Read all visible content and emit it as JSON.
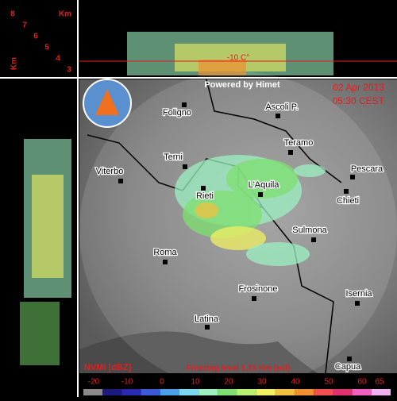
{
  "profile": {
    "unit": "Km",
    "heights": [
      "8",
      "7",
      "6",
      "5",
      "4",
      "3"
    ],
    "side_unit": "Km",
    "isotherm": "-10 C°"
  },
  "map": {
    "credit": "Powered by Himet",
    "date": "02 Apr 2013",
    "time": "05:30 CEST",
    "cities": [
      "Foligno",
      "Ascoli P.",
      "Teramo",
      "Terni",
      "Pescara",
      "Viterbo",
      "L'Aquila",
      "Rieti",
      "Chieti",
      "Sulmona",
      "Roma",
      "Frosinone",
      "Isernia",
      "Latina",
      "Capua"
    ]
  },
  "legend": {
    "product": "NVMI [dBZ]",
    "freezing": "Freezing level  1.73 Km (asl)",
    "ticks": [
      -20,
      -10,
      0,
      10,
      20,
      30,
      40,
      50,
      60,
      65
    ],
    "colors": [
      "#8a8a8a",
      "#1a1a80",
      "#2a2ab0",
      "#3a5ad8",
      "#4aa0e8",
      "#7ad8f0",
      "#9cf0c0",
      "#7ee070",
      "#b8f070",
      "#f0f060",
      "#f0c040",
      "#f09030",
      "#f05050",
      "#e03070",
      "#f060c0",
      "#f0b0f0"
    ]
  }
}
